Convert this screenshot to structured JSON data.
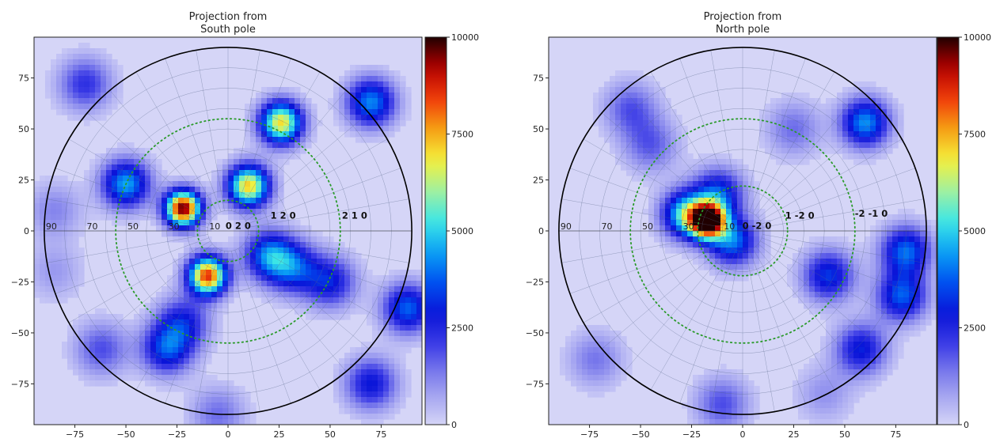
{
  "colormap": {
    "stops": [
      "#e8e8fa",
      "#b6b6f3",
      "#8080ec",
      "#3c3ce6",
      "#0a14d8",
      "#0050f0",
      "#0aa0f5",
      "#3ce6e6",
      "#a0f0a0",
      "#f5f03c",
      "#f5a014",
      "#f03c0a",
      "#b40000",
      "#200000"
    ],
    "grid_color": "#556688",
    "circle_color": "#000000",
    "dotted_color": "#2a9a2a"
  },
  "chart_data": [
    {
      "type": "heatmap",
      "title_line1": "Projection from",
      "title_line2": "South pole",
      "xlim": [
        -95,
        95
      ],
      "ylim": [
        -95,
        95
      ],
      "xticks": [
        -75,
        -50,
        -25,
        0,
        25,
        50,
        75
      ],
      "yticks": [
        75,
        50,
        25,
        0,
        -25,
        -50,
        -75
      ],
      "colorbar": {
        "min": 0,
        "max": 10000,
        "ticks": [
          0,
          2500,
          5000,
          7500,
          10000
        ]
      },
      "radial_labels": [
        {
          "text": "90",
          "r": 90
        },
        {
          "text": "70",
          "r": 70
        },
        {
          "text": "50",
          "r": 50
        },
        {
          "text": "30",
          "r": 30
        },
        {
          "text": "10",
          "r": 10
        }
      ],
      "hkl_labels": [
        {
          "text": "0 2 0",
          "x": 5,
          "y": 1
        },
        {
          "text": "1 2 0",
          "x": 27,
          "y": 6
        },
        {
          "text": "2 1 0",
          "x": 62,
          "y": 6
        }
      ],
      "dotted_circles": [
        55,
        15
      ],
      "peaks": [
        {
          "x": -22,
          "y": 11,
          "intensity": 9800
        },
        {
          "x": 10,
          "y": 22,
          "intensity": 7200
        },
        {
          "x": -10,
          "y": -22,
          "intensity": 8600
        },
        {
          "x": 26,
          "y": 53,
          "intensity": 7000
        },
        {
          "x": -50,
          "y": 23,
          "intensity": 4500
        },
        {
          "x": 70,
          "y": 63,
          "intensity": 4200
        },
        {
          "x": 20,
          "y": -12,
          "intensity": 3900
        },
        {
          "x": 32,
          "y": -18,
          "intensity": 3200
        },
        {
          "x": 50,
          "y": -25,
          "intensity": 2900
        },
        {
          "x": 88,
          "y": -38,
          "intensity": 3800
        },
        {
          "x": -30,
          "y": -58,
          "intensity": 3400
        },
        {
          "x": -22,
          "y": -45,
          "intensity": 2700
        },
        {
          "x": -70,
          "y": 72,
          "intensity": 2300
        },
        {
          "x": 70,
          "y": -75,
          "intensity": 2900
        },
        {
          "x": -62,
          "y": -58,
          "intensity": 1900
        },
        {
          "x": -5,
          "y": -90,
          "intensity": 1500
        },
        {
          "x": -85,
          "y": 10,
          "intensity": 1200
        },
        {
          "x": -85,
          "y": -20,
          "intensity": 900
        }
      ]
    },
    {
      "type": "heatmap",
      "title_line1": "Projection from",
      "title_line2": "North pole",
      "xlim": [
        -95,
        95
      ],
      "ylim": [
        -95,
        95
      ],
      "xticks": [
        -75,
        -50,
        -25,
        0,
        25,
        50,
        75
      ],
      "yticks": [
        75,
        50,
        25,
        0,
        -25,
        -50,
        -75
      ],
      "colorbar": {
        "min": 0,
        "max": 10000,
        "ticks": [
          0,
          2500,
          5000,
          7500,
          10000
        ]
      },
      "radial_labels": [
        {
          "text": "90",
          "r": 90
        },
        {
          "text": "70",
          "r": 70
        },
        {
          "text": "50",
          "r": 50
        },
        {
          "text": "30",
          "r": 30
        },
        {
          "text": "10",
          "r": 10
        }
      ],
      "hkl_labels": [
        {
          "text": "0 -2 0",
          "x": 7,
          "y": 1
        },
        {
          "text": "1 -2 0",
          "x": 28,
          "y": 6
        },
        {
          "text": "-2 -1 0",
          "x": 63,
          "y": 7
        }
      ],
      "dotted_circles": [
        55,
        22
      ],
      "peaks": [
        {
          "x": -17,
          "y": 5,
          "intensity": 10000
        },
        {
          "x": -28,
          "y": 8,
          "intensity": 5200
        },
        {
          "x": -5,
          "y": -5,
          "intensity": 4000
        },
        {
          "x": -12,
          "y": 18,
          "intensity": 3500
        },
        {
          "x": 60,
          "y": 53,
          "intensity": 4300
        },
        {
          "x": 42,
          "y": -22,
          "intensity": 3300
        },
        {
          "x": 80,
          "y": -10,
          "intensity": 3900
        },
        {
          "x": 78,
          "y": -32,
          "intensity": 3700
        },
        {
          "x": 58,
          "y": -58,
          "intensity": 3000
        },
        {
          "x": -45,
          "y": 42,
          "intensity": 1700
        },
        {
          "x": 25,
          "y": 50,
          "intensity": 1500
        },
        {
          "x": -55,
          "y": 60,
          "intensity": 1800
        },
        {
          "x": -72,
          "y": -63,
          "intensity": 1400
        },
        {
          "x": -10,
          "y": -85,
          "intensity": 1900
        },
        {
          "x": 40,
          "y": -80,
          "intensity": 1000
        }
      ]
    }
  ]
}
